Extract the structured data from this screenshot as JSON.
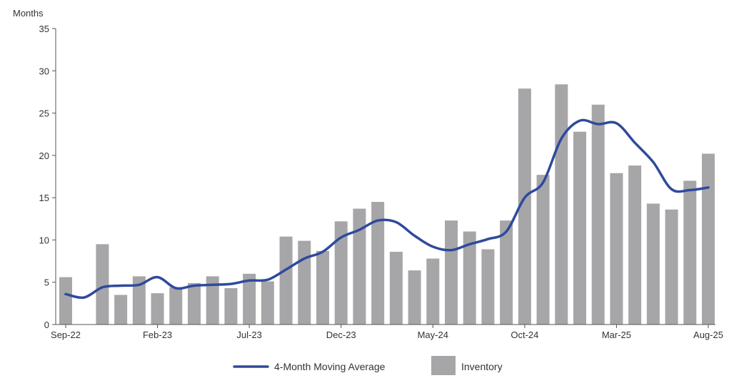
{
  "chart_data": {
    "type": "bar",
    "title": "",
    "xlabel": "",
    "ylabel": "Months",
    "ylim": [
      0,
      35
    ],
    "y_ticks": [
      "0",
      "5",
      "10",
      "15",
      "20",
      "25",
      "30",
      "35"
    ],
    "grid": false,
    "legend_position": "bottom",
    "categories": [
      "Sep-22",
      "Oct-22",
      "Nov-22",
      "Dec-22",
      "Jan-23",
      "Feb-23",
      "Mar-23",
      "Apr-23",
      "May-23",
      "Jun-23",
      "Jul-23",
      "Aug-23",
      "Sep-23",
      "Oct-23",
      "Nov-23",
      "Dec-23",
      "Jan-24",
      "Feb-24",
      "Mar-24",
      "Apr-24",
      "May-24",
      "Jun-24",
      "Jul-24",
      "Aug-24",
      "Sep-24",
      "Oct-24",
      "Nov-24",
      "Dec-24",
      "Jan-25",
      "Feb-25",
      "Mar-25",
      "Apr-25",
      "May-25",
      "Jun-25",
      "Jul-25",
      "Aug-25"
    ],
    "x_tick_labels": [
      {
        "index": 0,
        "label": "Sep-22"
      },
      {
        "index": 5,
        "label": "Feb-23"
      },
      {
        "index": 10,
        "label": "Jul-23"
      },
      {
        "index": 15,
        "label": "Dec-23"
      },
      {
        "index": 20,
        "label": "May-24"
      },
      {
        "index": 25,
        "label": "Oct-24"
      },
      {
        "index": 30,
        "label": "Mar-25"
      },
      {
        "index": 35,
        "label": "Aug-25"
      }
    ],
    "series": [
      {
        "name": "Inventory",
        "type": "bar",
        "color": "#a6a6a9",
        "values": [
          5.6,
          null,
          9.5,
          3.5,
          5.7,
          3.7,
          4.4,
          4.9,
          5.7,
          4.3,
          6.0,
          5.1,
          10.4,
          9.9,
          8.7,
          12.2,
          13.7,
          14.5,
          8.6,
          6.4,
          7.8,
          12.3,
          11.0,
          8.9,
          12.3,
          27.9,
          17.7,
          28.4,
          22.8,
          26.0,
          17.9,
          18.8,
          14.3,
          13.6,
          17.0,
          20.2
        ]
      },
      {
        "name": "4-Month Moving Average",
        "type": "line",
        "color": "#2e4a9c",
        "values": [
          3.6,
          3.2,
          4.4,
          4.6,
          4.7,
          5.6,
          4.3,
          4.6,
          4.7,
          4.8,
          5.2,
          5.3,
          6.5,
          7.8,
          8.6,
          10.3,
          11.2,
          12.3,
          12.1,
          10.5,
          9.2,
          8.8,
          9.5,
          10.1,
          11.0,
          15.0,
          16.8,
          22.0,
          24.1,
          23.7,
          23.8,
          21.5,
          19.2,
          16.0,
          15.9,
          16.2
        ]
      }
    ],
    "legend": [
      {
        "label": "4-Month Moving Average",
        "kind": "line",
        "color": "#2e4a9c"
      },
      {
        "label": "Inventory",
        "kind": "box",
        "color": "#a6a6a9"
      }
    ]
  }
}
